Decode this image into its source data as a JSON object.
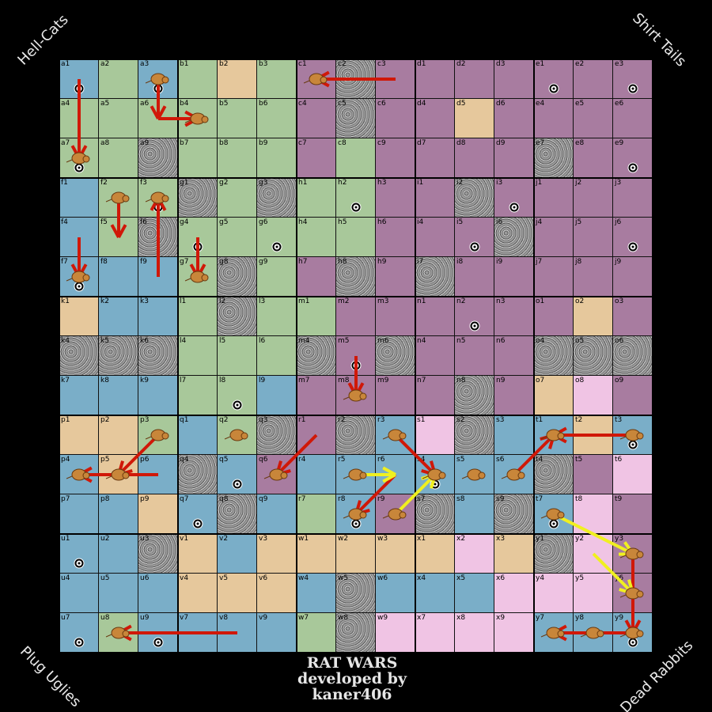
{
  "corners": {
    "top_left": "Hell-Cats",
    "top_right": "Shirt Tails",
    "bottom_left": "Plug Uglies",
    "bottom_right": "Dead Rabbits"
  },
  "title": {
    "line1": "RAT WARS",
    "line2": "developed by",
    "line3": "kaner406"
  },
  "colors": {
    "B": "#7aaec8",
    "G": "#a8c89a",
    "T": "#e6c89c",
    "P": "#a87ca0",
    "K": "#f0c4e4",
    "R": "#8a8a8a",
    "arrow_red": "#d01808",
    "arrow_yellow": "#f0f020",
    "rat": "#c8863a"
  },
  "blocks": [
    [
      "a",
      "b",
      "c",
      "d",
      "e"
    ],
    [
      "f",
      "g",
      "h",
      "i",
      "j"
    ],
    [
      "k",
      "l",
      "m",
      "n",
      "o"
    ],
    [
      "p",
      "q",
      "r",
      "s",
      "t"
    ],
    [
      "u",
      "v",
      "w",
      "x",
      "y"
    ]
  ],
  "terrain": [
    "BGBGTGPRPPPPPPP",
    "GGGGGGPRPPTPPPP",
    "GGRGGGPGPPPPRPP",
    "BGGRGRGGPPRPPPP",
    "BGRGGGGGPPPRPPP",
    "BBBGRGPRPRPPPPP",
    "TBBGRGGPPPPPPTP",
    "RRRGGGRPRPPPRRR",
    "BBBGGBPPPPRPTKP",
    "TTGBGRPRBKRBBTB",
    "BTBRBPBBBBBBRPK",
    "BBTBRBGBPRBRBKP",
    "BBRTBTTTTTKTRKP",
    "BBBTTTBRBBBKKKP",
    "BGBBBBGRKKKKBBB"
  ],
  "targets": [
    "a1",
    "a3",
    "a7",
    "f3",
    "g4",
    "g6",
    "h2",
    "i3",
    "i5",
    "j6",
    "e1",
    "e3",
    "e9",
    "n2",
    "m5",
    "l8",
    "t3",
    "q5",
    "q7",
    "t7",
    "u1",
    "u7",
    "u9",
    "y9",
    "r8",
    "s4",
    "f7"
  ],
  "rats": [
    "a3",
    "b4",
    "a7",
    "f2",
    "f3",
    "f7",
    "g7",
    "c1",
    "q2",
    "m8",
    "p3",
    "p5",
    "p4",
    "q6",
    "r5",
    "s4",
    "s5",
    "s6",
    "t1",
    "t3",
    "t7",
    "r3",
    "r8",
    "r9",
    "u8",
    "y7",
    "y8",
    "y9",
    "y6",
    "y3"
  ],
  "arrows": [
    {
      "from": "a1",
      "to": "a7",
      "color": "red"
    },
    {
      "from": "a3",
      "to": "a6",
      "color": "red"
    },
    {
      "from": "a6",
      "to": "b4",
      "color": "red"
    },
    {
      "from": "c3",
      "to": "c1",
      "color": "red"
    },
    {
      "from": "f2",
      "to": "f5",
      "color": "red"
    },
    {
      "from": "f9",
      "to": "f3",
      "color": "red"
    },
    {
      "from": "f4",
      "to": "f7",
      "color": "red"
    },
    {
      "from": "g4",
      "to": "g7",
      "color": "red"
    },
    {
      "from": "m5",
      "to": "m8",
      "color": "red"
    },
    {
      "from": "p3",
      "to": "p5",
      "color": "red"
    },
    {
      "from": "p6",
      "to": "p4",
      "color": "red"
    },
    {
      "from": "r1",
      "to": "q6",
      "color": "red"
    },
    {
      "from": "r6",
      "to": "r8",
      "color": "red"
    },
    {
      "from": "r3",
      "to": "s4",
      "color": "red"
    },
    {
      "from": "t3",
      "to": "t1",
      "color": "red"
    },
    {
      "from": "s6",
      "to": "t1",
      "color": "red"
    },
    {
      "from": "y3",
      "to": "y9",
      "color": "red"
    },
    {
      "from": "v8",
      "to": "u8",
      "color": "red"
    },
    {
      "from": "y9",
      "to": "y7",
      "color": "red"
    },
    {
      "from": "r5",
      "to": "r6",
      "color": "yellow"
    },
    {
      "from": "r9",
      "to": "s4",
      "color": "yellow"
    },
    {
      "from": "t7",
      "to": "y3",
      "color": "yellow"
    },
    {
      "from": "y2",
      "to": "y6",
      "color": "yellow"
    }
  ]
}
